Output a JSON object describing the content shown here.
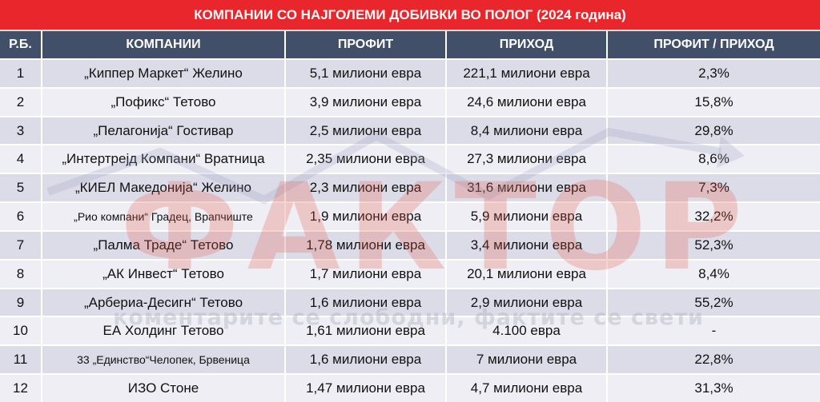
{
  "title": "КОМПАНИИ СО НАЈГОЛЕМИ ДОБИВКИ ВО ПОЛОГ (2024 година)",
  "columns": [
    "Р.Б.",
    "КОМПАНИИ",
    "ПРОФИТ",
    "ПРИХОД",
    "ПРОФИТ / ПРИХОД"
  ],
  "rows": [
    {
      "rb": "1",
      "company": "„Киппер Маркет“ Желино",
      "profit": "5,1 милиони евра",
      "revenue": "221,1 милиони евра",
      "ratio": "2,3%"
    },
    {
      "rb": "2",
      "company": "„Пофикс“ Тетово",
      "profit": "3,9 милиони евра",
      "revenue": "24,6 милиони евра",
      "ratio": "15,8%"
    },
    {
      "rb": "3",
      "company": "„Пелагонија“ Гостивар",
      "profit": "2,5 милиони евра",
      "revenue": "8,4 милиони евра",
      "ratio": "29,8%"
    },
    {
      "rb": "4",
      "company": "„Интертрејд Компани“ Вратница",
      "profit": "2,35 милиони евра",
      "revenue": "27,3 милиони евра",
      "ratio": "8,6%"
    },
    {
      "rb": "5",
      "company": "„КИЕЛ Македонија“ Желино",
      "profit": "2,3 милиони евра",
      "revenue": "31,6 милиони евра",
      "ratio": "7,3%"
    },
    {
      "rb": "6",
      "company": "„Рио компани“ Градец, Врапчиште",
      "profit": "1,9 милиони евра",
      "revenue": "5,9 милиони евра",
      "ratio": "32,2%"
    },
    {
      "rb": "7",
      "company": "„Палма Траде“ Тетово",
      "profit": "1,78 милиони евра",
      "revenue": "3,4 милиони евра",
      "ratio": "52,3%"
    },
    {
      "rb": "8",
      "company": "„АК Инвест“ Тетово",
      "profit": "1,7 милиони евра",
      "revenue": "20,1 милиони евра",
      "ratio": "8,4%"
    },
    {
      "rb": "9",
      "company": "„Арбериа-Десигн“ Тетово",
      "profit": "1,6 милиони евра",
      "revenue": "2,9 милиони евра",
      "ratio": "55,2%"
    },
    {
      "rb": "10",
      "company": "ЕА Холдинг Тетово",
      "profit": "1,61 милиони евра",
      "revenue": "4.100 евра",
      "ratio": "-"
    },
    {
      "rb": "11",
      "company": "33 „Единство“Челопек, Брвеница",
      "profit": "1,6 милиони евра",
      "revenue": "7 милиони евра",
      "ratio": "22,8%"
    },
    {
      "rb": "12",
      "company": "ИЗО Стоне",
      "profit": "1,47 милиони евра",
      "revenue": "4,7 милиони евра",
      "ratio": "31,3%"
    }
  ],
  "watermark": {
    "word": "ФАКТОР",
    "tagline": "коментарите се слободни, фактите се свети"
  },
  "colors": {
    "title_bg": "#e8262b",
    "header_bg": "#424f69",
    "row_odd": "#dcdce9",
    "row_even": "#eeeef4"
  }
}
